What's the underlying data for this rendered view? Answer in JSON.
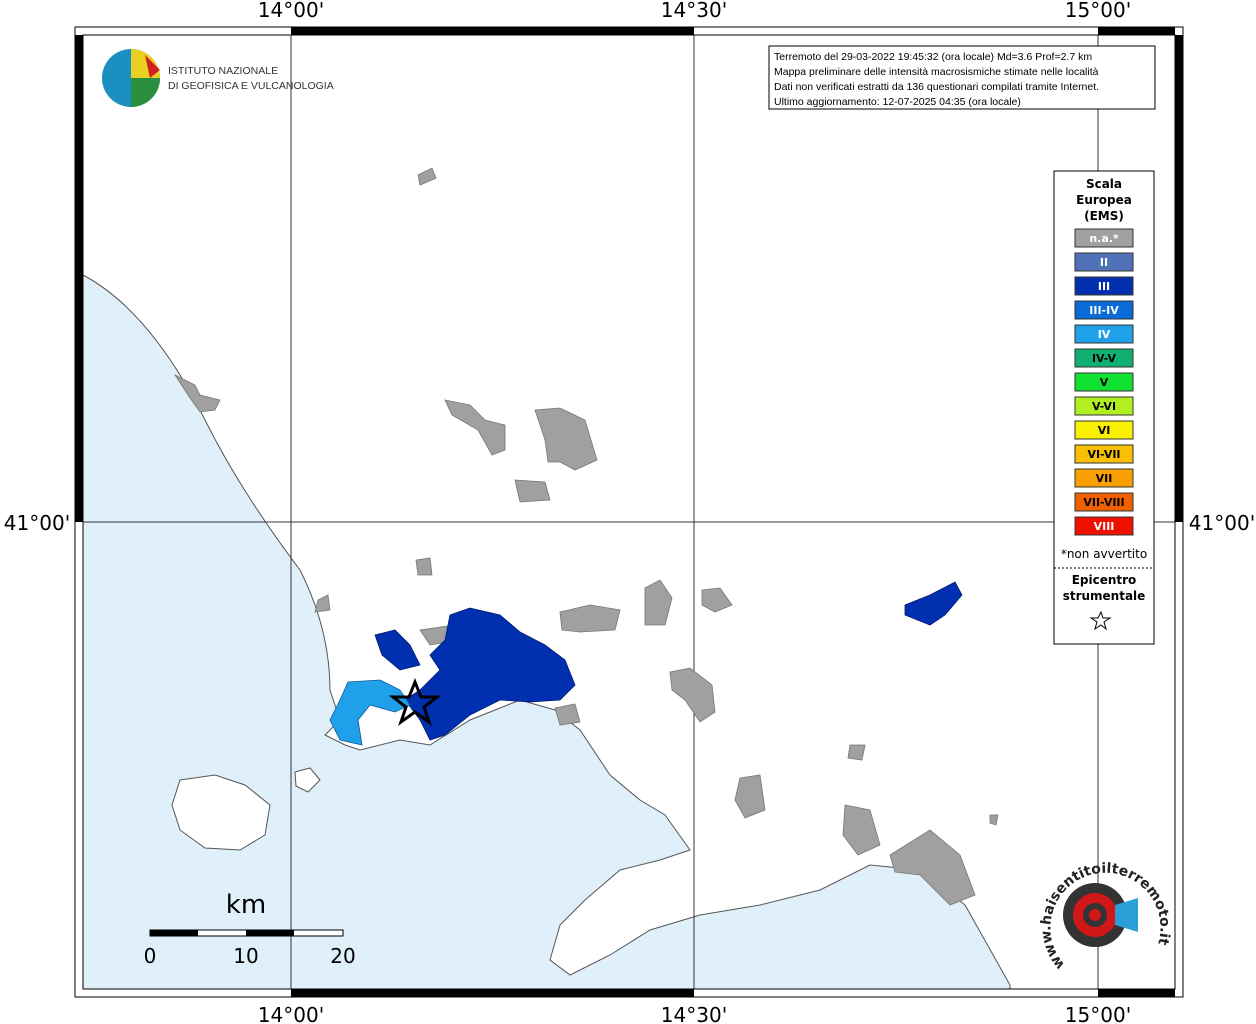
{
  "header": {
    "logo_line1": "ISTITUTO NAZIONALE",
    "logo_line2": "DI GEOFISICA E VULCANOLOGIA"
  },
  "info": {
    "lines": [
      "Terremoto del 29-03-2022 19:45:32 (ora locale) Md=3.6 Prof=2.7 km",
      "Mappa preliminare delle intensità macrosismiche stimate nelle località",
      "Dati non verificati estratti da 136 questionari compilati tramite Internet.",
      "Ultimo aggiornamento: 12-07-2025 04:35 (ora locale)"
    ]
  },
  "axes": {
    "top": [
      "14°00'",
      "14°30'",
      "15°00'"
    ],
    "bottom": [
      "14°00'",
      "14°30'",
      "15°00'"
    ],
    "left": "41°00'",
    "right": "41°00'"
  },
  "legend": {
    "title_lines": [
      "Scala",
      "Europea",
      "(EMS)"
    ],
    "items": [
      {
        "label": "n.a.*",
        "color": "#a0a0a0",
        "text_color": "#ffffff"
      },
      {
        "label": "II",
        "color": "#5070b8",
        "text_color": "#ffffff"
      },
      {
        "label": "III",
        "color": "#0030b0",
        "text_color": "#ffffff"
      },
      {
        "label": "III-IV",
        "color": "#0a6ad8",
        "text_color": "#ffffff"
      },
      {
        "label": "IV",
        "color": "#20a0e8",
        "text_color": "#ffffff"
      },
      {
        "label": "IV-V",
        "color": "#10b070",
        "text_color": "#000000"
      },
      {
        "label": "V",
        "color": "#10e030",
        "text_color": "#000000"
      },
      {
        "label": "V-VI",
        "color": "#b0f020",
        "text_color": "#000000"
      },
      {
        "label": "VI",
        "color": "#f8f000",
        "text_color": "#000000"
      },
      {
        "label": "VI-VII",
        "color": "#f8c000",
        "text_color": "#000000"
      },
      {
        "label": "VII",
        "color": "#f8a000",
        "text_color": "#000000"
      },
      {
        "label": "VII-VIII",
        "color": "#f06000",
        "text_color": "#000000"
      },
      {
        "label": "VIII",
        "color": "#f01000",
        "text_color": "#ffffff"
      }
    ],
    "footnote": "*non avvertito",
    "epicentre_lines": [
      "Epicentro",
      "strumentale"
    ]
  },
  "scale": {
    "unit": "km",
    "labels": [
      "0",
      "10",
      "20"
    ]
  },
  "badge": {
    "text": "www.haisentitoilterremoto.it"
  }
}
